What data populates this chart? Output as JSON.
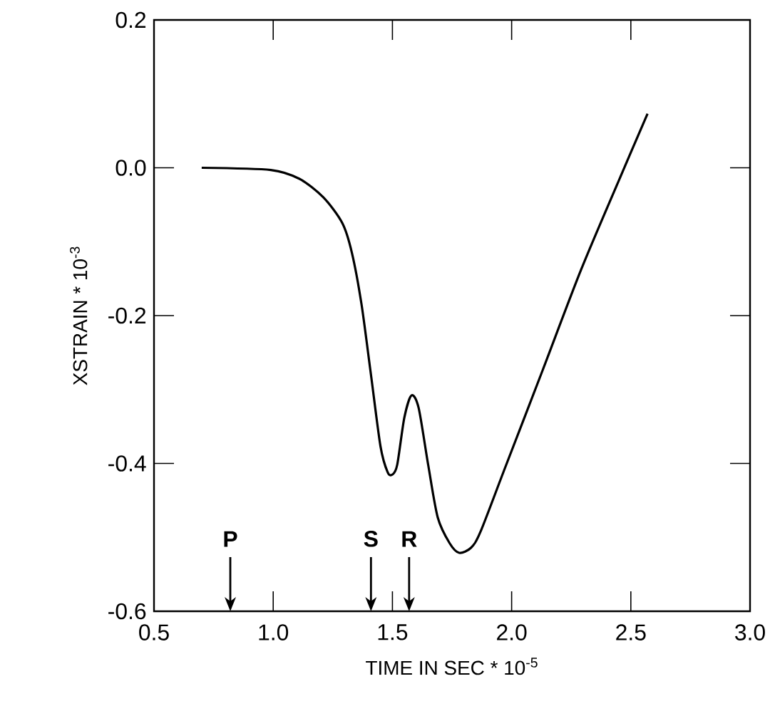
{
  "chart_data": {
    "type": "line",
    "xlabel": "TIME IN SEC * 10$^{-5}$",
    "ylabel": "XSTRAIN * 10$^{-3}$",
    "x": [
      0.7,
      0.99,
      1.11,
      1.21,
      1.29,
      1.33,
      1.37,
      1.41,
      1.45,
      1.48,
      1.5,
      1.52,
      1.55,
      1.58,
      1.61,
      1.65,
      1.69,
      1.74,
      1.78,
      1.83,
      1.87,
      1.97,
      2.13,
      2.29,
      2.45,
      2.57
    ],
    "series": [
      {
        "color": "#000000",
        "values": [
          0,
          -0.003,
          -0.015,
          -0.04,
          -0.075,
          -0.115,
          -0.184,
          -0.28,
          -0.377,
          -0.412,
          -0.415,
          -0.402,
          -0.338,
          -0.308,
          -0.325,
          -0.402,
          -0.473,
          -0.508,
          -0.521,
          -0.514,
          -0.492,
          -0.408,
          -0.274,
          -0.139,
          -0.017,
          0.073
        ]
      }
    ],
    "xlim": [
      0.5,
      3.0
    ],
    "ylim": [
      -0.6,
      0.2
    ],
    "xticks": [
      0.5,
      {
        "value": 1.0,
        "label": "1.0"
      },
      1.5,
      {
        "value": 2.0,
        "label": "2.0"
      },
      2.5,
      {
        "value": 3.0,
        "label": "3.0"
      }
    ],
    "yticks": [
      {
        "value": -0.6,
        "label": "-0.6"
      },
      {
        "value": -0.4,
        "label": "-0.4"
      },
      {
        "value": -0.2,
        "label": "-0.2"
      },
      {
        "value": 0,
        "label": "0.0"
      },
      0.2
    ],
    "ref_lines": [
      {
        "axis": "x",
        "value": 0.82,
        "label": "P"
      },
      {
        "axis": "x",
        "value": 1.41,
        "label": "S"
      },
      {
        "axis": "x",
        "value": 1.57,
        "label": "R"
      }
    ],
    "grid": false,
    "marker": "none",
    "line_style": "solid"
  }
}
